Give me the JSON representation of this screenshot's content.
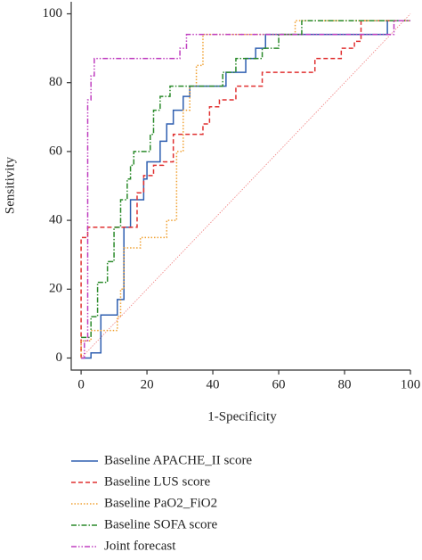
{
  "chart_data": {
    "type": "line",
    "x_label": "1-Specificity",
    "y_label": "Sensitivity",
    "xlim": [
      -3,
      100
    ],
    "ylim": [
      -3.5,
      103.5
    ],
    "xticks": [
      0,
      20,
      40,
      60,
      80,
      100
    ],
    "yticks": [
      0,
      20,
      40,
      60,
      80,
      100
    ],
    "series": [
      {
        "name": "Baseline APACHE_II score",
        "color": "#2f5fb0",
        "x": [
          0,
          3,
          3,
          6,
          6,
          11,
          11,
          13,
          13,
          15,
          15,
          19,
          19,
          20,
          20,
          24,
          24,
          26,
          26,
          28,
          28,
          31,
          31,
          33,
          33,
          44,
          44,
          50,
          50,
          53,
          53,
          56,
          56,
          93,
          93,
          100
        ],
        "values": [
          0,
          0,
          1.5,
          1.5,
          12.5,
          12.5,
          17,
          17,
          38,
          38,
          46,
          46,
          52,
          52,
          57,
          57,
          63,
          63,
          68,
          68,
          72,
          72,
          76,
          76,
          79,
          79,
          83,
          83,
          87,
          87,
          90,
          90,
          94,
          94,
          98,
          98
        ]
      },
      {
        "name": "Baseline LUS score",
        "color": "#e03030",
        "x": [
          0,
          0,
          2,
          2,
          17,
          17,
          19,
          19,
          22,
          22,
          25,
          25,
          28,
          28,
          37,
          37,
          39,
          39,
          42,
          42,
          47,
          47,
          55,
          55,
          71,
          71,
          79,
          79,
          83,
          83,
          85,
          85,
          100
        ],
        "values": [
          0,
          35,
          35,
          38,
          38,
          48,
          48,
          53,
          53,
          56,
          56,
          57,
          57,
          65,
          65,
          68,
          68,
          73,
          73,
          75,
          75,
          79,
          79,
          83,
          83,
          87,
          87,
          90,
          90,
          92,
          92,
          98,
          98
        ]
      },
      {
        "name": "Baseline PaO2_FiO2",
        "color": "#f0a030",
        "x": [
          0,
          0,
          3,
          3,
          11,
          11,
          12,
          12,
          13,
          13,
          18,
          18,
          26,
          26,
          29,
          29,
          31,
          31,
          33,
          33,
          35,
          35,
          37,
          37,
          65,
          65,
          100
        ],
        "values": [
          0,
          5,
          5,
          8,
          8,
          12,
          12,
          20,
          20,
          32,
          32,
          35,
          35,
          40,
          40,
          60,
          60,
          72,
          72,
          79,
          79,
          85,
          85,
          94,
          94,
          98,
          98
        ]
      },
      {
        "name": "Baseline SOFA score",
        "color": "#2a8a2a",
        "x": [
          0,
          3,
          3,
          5,
          5,
          8,
          8,
          10,
          10,
          12,
          12,
          14,
          14,
          15,
          15,
          16,
          16,
          21,
          21,
          22,
          22,
          24,
          24,
          27,
          27,
          43,
          43,
          47,
          47,
          55,
          55,
          60,
          60,
          67,
          67,
          100
        ],
        "values": [
          6,
          6,
          12,
          12,
          22,
          22,
          28,
          28,
          38,
          38,
          46,
          46,
          52,
          52,
          56,
          56,
          60,
          60,
          65,
          65,
          72,
          72,
          76,
          76,
          79,
          79,
          83,
          83,
          87,
          87,
          90,
          90,
          94,
          94,
          98,
          98
        ]
      },
      {
        "name": "Joint forecast",
        "color": "#c040c0",
        "x": [
          0,
          1,
          1,
          2,
          2,
          3,
          3,
          4,
          4,
          30,
          30,
          32,
          32,
          95,
          95,
          100
        ],
        "values": [
          0,
          0,
          5,
          5,
          75,
          75,
          82,
          82,
          87,
          87,
          90,
          90,
          94,
          94,
          98,
          98
        ]
      }
    ]
  }
}
